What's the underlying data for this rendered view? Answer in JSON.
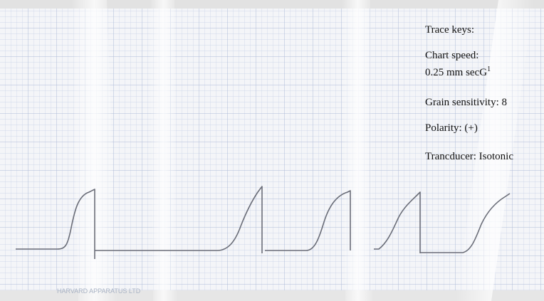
{
  "trace_keys": {
    "heading": "Trace keys:",
    "chart_speed_label": "Chart speed:",
    "chart_speed_value": "0.25 mm secG",
    "chart_speed_sup": "1",
    "grain_sensitivity": "Grain sensitivity: 8",
    "polarity": "Polarity: (+)",
    "transducer": "Trancducer: Isotonic"
  },
  "paper": {
    "imprint": "HARVARD APPARATUS LTD"
  }
}
